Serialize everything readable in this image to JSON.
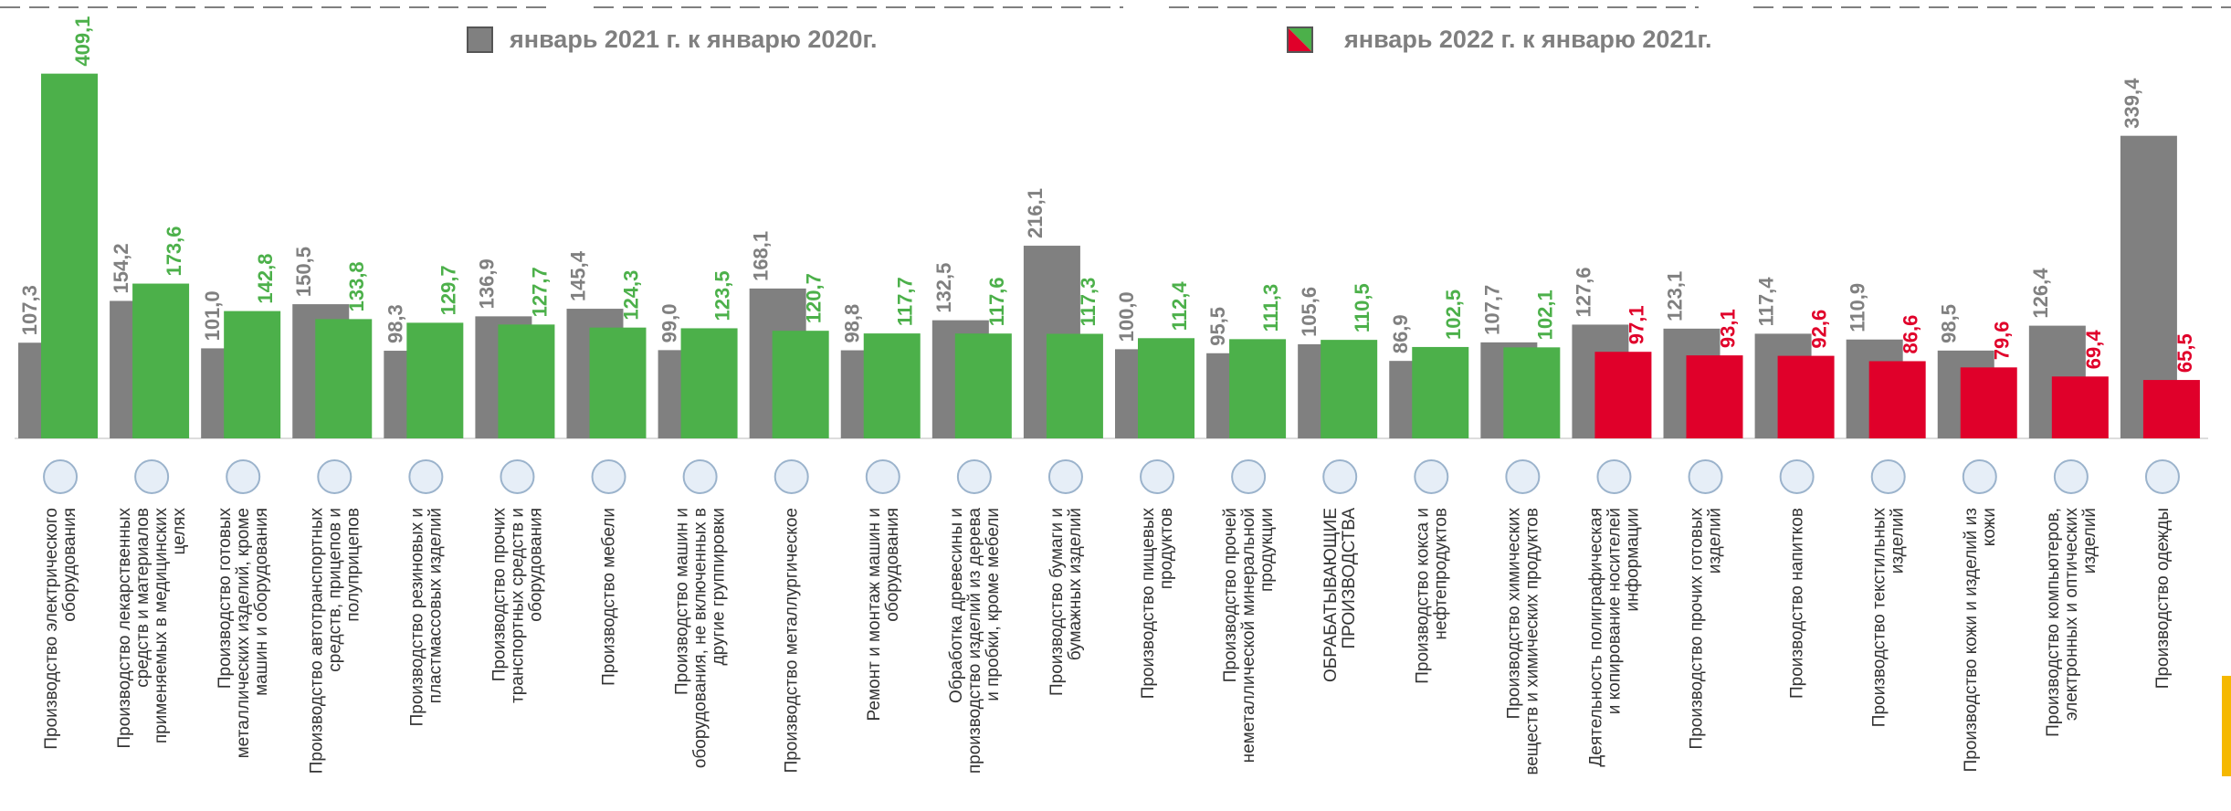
{
  "chart_data": {
    "type": "bar",
    "categories": [
      "Производство электрического\nоборудования",
      "Производство лекарственных\nсредств и материалов\nприменяемых в медицинских\nцелях",
      "Производство готовых\nметаллических изделий, кроме\nмашин и оборудования",
      "Производство автотранспортных\nсредств, прицепов и\nполуприцепов",
      "Производство резиновых и\nпластмассовых изделий",
      "Производство прочих\nтранспортных средств и\nоборудования",
      "Производство мебели",
      "Производство машин и\nоборудования, не включенных в\nдругие группировки",
      "Производство металлургическое",
      "Ремонт и монтаж машин и\nоборудования",
      "Обработка древесины и\nпроизводство изделий из дерева\nи пробки, кроме мебели",
      "Производство бумаги и\nбумажных изделий",
      "Производство пищевых\nпродуктов",
      "Производство прочей\nнеметаллической минеральной\nпродукции",
      "ОБРАБАТЫВАЮЩИЕ\nПРОИЗВОДСТВА",
      "Производство кокса и\nнефтепродуктов",
      "Производство химических\nвеществ и химических продуктов",
      "Деятельность полиграфическая\nи копирование носителей\nинформации",
      "Производство прочих готовых\nизделий",
      "Производство напитков",
      "Производство текстильных\nизделий",
      "Производство кожи и изделий из\nкожи",
      "Производство компьютеров,\nэлектронных и оптических\nизделий",
      "Производство одежды"
    ],
    "series": [
      {
        "name": "январь 2021 г. к январю 2020г.",
        "color": "#808080",
        "values": [
          107.3,
          154.2,
          101.0,
          150.5,
          98.3,
          136.9,
          145.4,
          99.0,
          168.1,
          98.8,
          132.5,
          216.1,
          100.0,
          95.5,
          105.6,
          86.9,
          107.7,
          127.6,
          123.1,
          117.4,
          110.9,
          98.5,
          126.4,
          339.4
        ],
        "value_labels": [
          "107,3",
          "154,2",
          "101,0",
          "150,5",
          "98,3",
          "136,9",
          "145,4",
          "99,0",
          "168,1",
          "98,8",
          "132,5",
          "216,1",
          "100,0",
          "95,5",
          "105,6",
          "86,9",
          "107,7",
          "127,6",
          "123,1",
          "117,4",
          "110,9",
          "98,5",
          "126,4",
          "339,4"
        ]
      },
      {
        "name": "январь 2022 г. к январю 2021г.",
        "colors": [
          "#4cb04a",
          "#4cb04a",
          "#4cb04a",
          "#4cb04a",
          "#4cb04a",
          "#4cb04a",
          "#4cb04a",
          "#4cb04a",
          "#4cb04a",
          "#4cb04a",
          "#4cb04a",
          "#4cb04a",
          "#4cb04a",
          "#4cb04a",
          "#4cb04a",
          "#4cb04a",
          "#4cb04a",
          "#e0002a",
          "#e0002a",
          "#e0002a",
          "#e0002a",
          "#e0002a",
          "#e0002a",
          "#e0002a"
        ],
        "values": [
          409.1,
          173.6,
          142.8,
          133.8,
          129.7,
          127.7,
          124.3,
          123.5,
          120.7,
          117.7,
          117.6,
          117.3,
          112.4,
          111.3,
          110.5,
          102.5,
          102.1,
          97.1,
          93.1,
          92.6,
          86.6,
          79.6,
          69.4,
          65.5
        ],
        "value_labels": [
          "409,1",
          "173,6",
          "142,8",
          "133,8",
          "129,7",
          "127,7",
          "124,3",
          "123,5",
          "120,7",
          "117,7",
          "117,6",
          "117,3",
          "112,4",
          "111,3",
          "110,5",
          "102,5",
          "102,1",
          "97,1",
          "93,1",
          "92,6",
          "86,6",
          "79,6",
          "69,4",
          "65,5"
        ]
      }
    ],
    "ylim": [
      0,
      420
    ]
  }
}
